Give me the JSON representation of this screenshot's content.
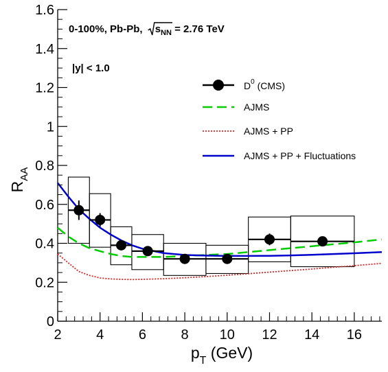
{
  "chart_data": {
    "type": "scatter",
    "xlabel": "p",
    "xlabel_sub": "T",
    "xlabel_unit": " (GeV)",
    "ylabel": "R",
    "ylabel_sub": "AA",
    "xlim": [
      2,
      17.3
    ],
    "ylim": [
      0,
      1.6
    ],
    "x_ticks": [
      2,
      4,
      6,
      8,
      10,
      12,
      14,
      16
    ],
    "x_tick_labels": [
      "2",
      "4",
      "6",
      "8",
      "10",
      "12",
      "14",
      "16"
    ],
    "y_ticks": [
      0,
      0.2,
      0.4,
      0.6,
      0.8,
      1,
      1.2,
      1.4,
      1.6
    ],
    "y_tick_labels": [
      "0",
      "0.2",
      "0.4",
      "0.6",
      "0.8",
      "1",
      "1.2",
      "1.4",
      "1.6"
    ],
    "annotations": [
      {
        "prefix": "0-100%, Pb-Pb, ",
        "root_sub": "NN",
        "suffix": " = 2.76 TeV"
      },
      {
        "text": "|y| < 1.0"
      }
    ],
    "legend_position": "top-right",
    "series": [
      {
        "name": "D",
        "name_sup": "0",
        "name_suffix": " (CMS)",
        "kind": "points",
        "color": "#000000",
        "points": [
          {
            "x": 3.0,
            "xlo": 2.5,
            "xhi": 3.5,
            "y": 0.57,
            "stat": 0.05,
            "syslo": 0.4,
            "syshi": 0.74
          },
          {
            "x": 4.0,
            "xlo": 3.5,
            "xhi": 4.5,
            "y": 0.52,
            "stat": 0.035,
            "syslo": 0.38,
            "syshi": 0.655
          },
          {
            "x": 5.0,
            "xlo": 4.5,
            "xhi": 5.5,
            "y": 0.39,
            "stat": 0.015,
            "syslo": 0.29,
            "syshi": 0.485
          },
          {
            "x": 6.25,
            "xlo": 5.5,
            "xhi": 7.0,
            "y": 0.36,
            "stat": 0.01,
            "syslo": 0.265,
            "syshi": 0.445
          },
          {
            "x": 8.0,
            "xlo": 7.0,
            "xhi": 9.0,
            "y": 0.32,
            "stat": 0.01,
            "syslo": 0.235,
            "syshi": 0.4
          },
          {
            "x": 10.0,
            "xlo": 9.0,
            "xhi": 11.0,
            "y": 0.32,
            "stat": 0.015,
            "syslo": 0.245,
            "syshi": 0.39
          },
          {
            "x": 12.0,
            "xlo": 11.0,
            "xhi": 13.0,
            "y": 0.42,
            "stat": 0.03,
            "syslo": 0.305,
            "syshi": 0.535
          },
          {
            "x": 14.5,
            "xlo": 13.0,
            "xhi": 16.0,
            "y": 0.41,
            "stat": 0.01,
            "syslo": 0.28,
            "syshi": 0.54
          }
        ]
      },
      {
        "name": "AJMS",
        "kind": "line",
        "color": "#00cc00",
        "dash": "14 7",
        "x": [
          2,
          2.5,
          3,
          3.5,
          4,
          4.5,
          5,
          5.5,
          6,
          7,
          8,
          9,
          10,
          11,
          12,
          13,
          14,
          15,
          16,
          17.3
        ],
        "y": [
          0.48,
          0.435,
          0.4,
          0.375,
          0.36,
          0.345,
          0.335,
          0.33,
          0.33,
          0.33,
          0.335,
          0.34,
          0.345,
          0.355,
          0.365,
          0.375,
          0.385,
          0.395,
          0.405,
          0.42
        ]
      },
      {
        "name": "AJMS + PP",
        "kind": "line",
        "color": "#dd2222",
        "dash": "2 2",
        "x": [
          2,
          2.5,
          3,
          3.5,
          4,
          4.5,
          5,
          5.5,
          6,
          7,
          8,
          9,
          10,
          11,
          12,
          13,
          14,
          15,
          16,
          17.3
        ],
        "y": [
          0.345,
          0.3,
          0.255,
          0.235,
          0.222,
          0.217,
          0.215,
          0.214,
          0.215,
          0.218,
          0.223,
          0.229,
          0.236,
          0.244,
          0.252,
          0.26,
          0.268,
          0.277,
          0.285,
          0.297
        ]
      },
      {
        "name": "AJMS + PP + Fluctuations",
        "kind": "line",
        "color": "#0000cc",
        "dash": "",
        "x": [
          2,
          2.5,
          3,
          3.5,
          4,
          4.5,
          5,
          5.5,
          6,
          7,
          8,
          9,
          10,
          11,
          12,
          13,
          14,
          15,
          16,
          17.3
        ],
        "y": [
          0.71,
          0.64,
          0.575,
          0.525,
          0.48,
          0.445,
          0.415,
          0.39,
          0.372,
          0.35,
          0.34,
          0.337,
          0.335,
          0.335,
          0.336,
          0.338,
          0.341,
          0.345,
          0.349,
          0.355
        ]
      }
    ]
  }
}
